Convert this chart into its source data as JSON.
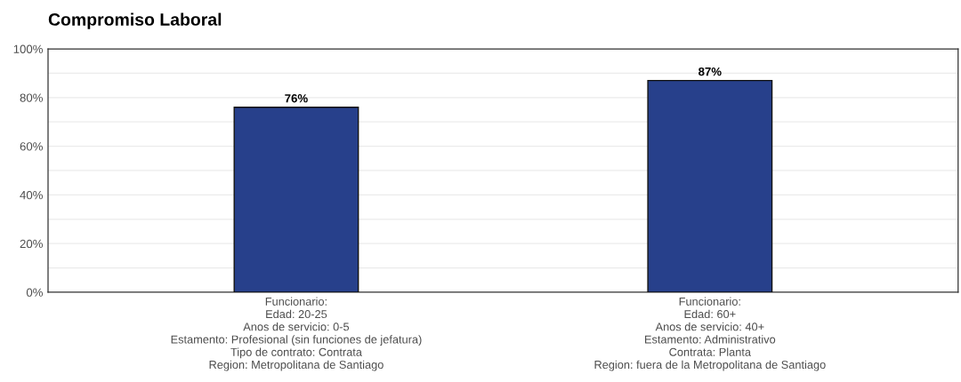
{
  "chart_data": {
    "type": "bar",
    "title": "Compromiso Laboral",
    "categories": [
      "Funcionario:\nEdad: 20-25\nAnos de servicio: 0-5\nEstamento: Profesional (sin funciones de jefatura)\nTipo de contrato: Contrata\nRegion: Metropolitana de Santiago",
      "Funcionario:\nEdad: 60+\nAnos de servicio: 40+\nEstamento: Administrativo\nContrata: Planta\nRegion: fuera de la Metropolitana de Santiago"
    ],
    "values": [
      76,
      87
    ],
    "color": "#27408b",
    "value_labels": [
      "76%",
      "87%"
    ],
    "ylim": [
      0,
      100
    ],
    "yticks": [
      {
        "value": 0,
        "label": "0%"
      },
      {
        "value": 10,
        "label": null
      },
      {
        "value": 20,
        "label": "20%"
      },
      {
        "value": 30,
        "label": null
      },
      {
        "value": 40,
        "label": "40%"
      },
      {
        "value": 50,
        "label": null
      },
      {
        "value": 60,
        "label": "60%"
      },
      {
        "value": 70,
        "label": null
      },
      {
        "value": 80,
        "label": "80%"
      },
      {
        "value": 90,
        "label": null
      },
      {
        "value": 100,
        "label": "100%"
      }
    ],
    "grid": "y"
  }
}
